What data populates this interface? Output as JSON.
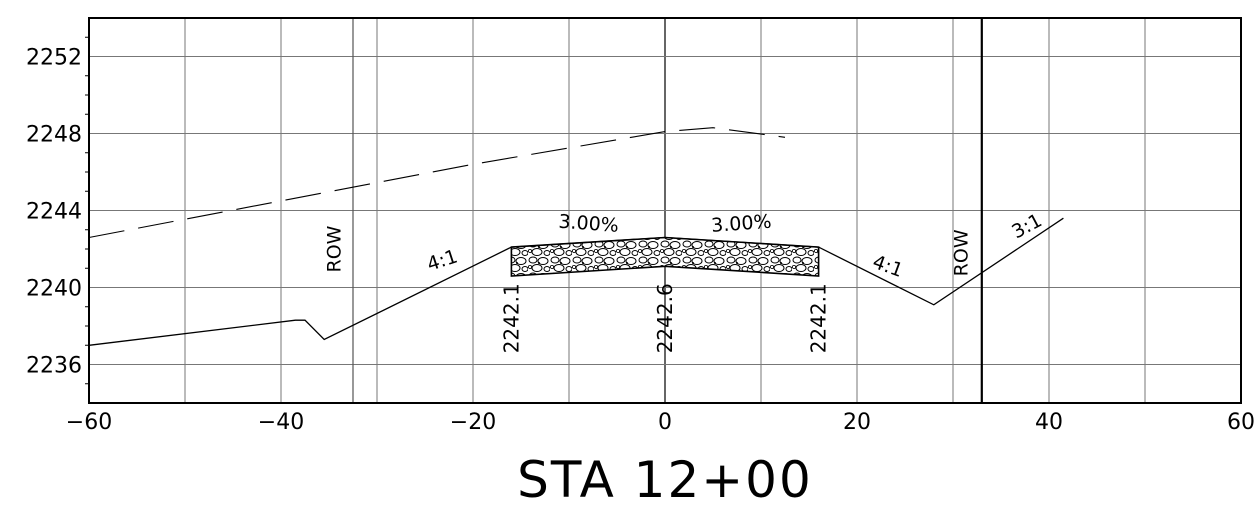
{
  "title": "STA 12+00",
  "x_axis": {
    "min": -60,
    "max": 60,
    "ticks": [
      -60,
      -40,
      -20,
      0,
      20,
      40,
      60
    ],
    "tick_labels": [
      "−60",
      "−40",
      "−20",
      "0",
      "20",
      "40",
      "60"
    ]
  },
  "y_axis": {
    "min": 2234,
    "max": 2254,
    "ticks": [
      2236,
      2240,
      2244,
      2248,
      2252
    ],
    "tick_labels": [
      "2236",
      "2240",
      "2244",
      "2248",
      "2252"
    ]
  },
  "row": {
    "label": "ROW",
    "left_offset": -32.5,
    "right_offset": 33
  },
  "existing_ground": {
    "style": "dashed",
    "points": [
      [
        -60,
        2242.6
      ],
      [
        -40,
        2244.5
      ],
      [
        -20,
        2246.4
      ],
      [
        0,
        2248.1
      ],
      [
        5,
        2248.3
      ],
      [
        12.5,
        2247.8
      ]
    ]
  },
  "proposed_section": {
    "points": [
      [
        -60,
        2237.0
      ],
      [
        -38.5,
        2238.3
      ],
      [
        -37.5,
        2238.3
      ],
      [
        -35.5,
        2237.3
      ],
      [
        -16,
        2242.1
      ],
      [
        0,
        2242.6
      ],
      [
        16,
        2242.1
      ],
      [
        28,
        2239.1
      ],
      [
        41.5,
        2243.6
      ]
    ]
  },
  "pavement": {
    "fill": "gravel",
    "top": [
      [
        -16,
        2242.1
      ],
      [
        0,
        2242.6
      ],
      [
        16,
        2242.1
      ]
    ],
    "bottom": [
      [
        -16,
        2240.6
      ],
      [
        0,
        2241.1
      ],
      [
        16,
        2240.6
      ]
    ]
  },
  "grades": [
    {
      "text": "3.00%",
      "side": "left"
    },
    {
      "text": "3.00%",
      "side": "right"
    }
  ],
  "slopes": [
    {
      "text": "4:1",
      "side": "left fill"
    },
    {
      "text": "4:1",
      "side": "right cut"
    },
    {
      "text": "3:1",
      "side": "right backslope"
    }
  ],
  "elevations": [
    {
      "offset": -16,
      "text": "2242.1"
    },
    {
      "offset": 0,
      "text": "2242.6"
    },
    {
      "offset": 16,
      "text": "2242.1"
    }
  ]
}
